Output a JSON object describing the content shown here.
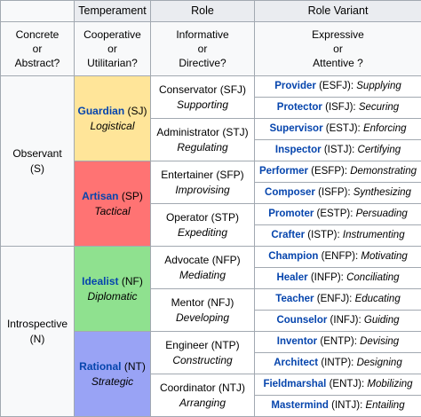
{
  "headers": {
    "temperament": "Temperament",
    "role": "Role",
    "role_variant": "Role Variant"
  },
  "questions": {
    "col1": [
      "Concrete",
      "or",
      "Abstract?"
    ],
    "col2": [
      "Cooperative",
      "or",
      "Utilitarian?"
    ],
    "col3": [
      "Informative",
      "or",
      "Directive?"
    ],
    "col4": [
      "Expressive",
      "or",
      "Attentive ?"
    ]
  },
  "groups": [
    {
      "label": "Observant",
      "code": "(S)"
    },
    {
      "label": "Introspective",
      "code": "(N)"
    }
  ],
  "temperaments": [
    {
      "name": "Guardian",
      "code": "(SJ)",
      "desc": "Logistical",
      "color": "#ffe599"
    },
    {
      "name": "Artisan",
      "code": "(SP)",
      "desc": "Tactical",
      "color": "#ff7373"
    },
    {
      "name": "Idealist",
      "code": "(NF)",
      "desc": "Diplomatic",
      "color": "#8fe18f"
    },
    {
      "name": "Rational",
      "code": "(NT)",
      "desc": "Strategic",
      "color": "#99a3f5"
    }
  ],
  "roles": [
    {
      "name": "Conservator",
      "code": "(SFJ)",
      "desc": "Supporting"
    },
    {
      "name": "Administrator",
      "code": "(STJ)",
      "desc": "Regulating"
    },
    {
      "name": "Entertainer",
      "code": "(SFP)",
      "desc": "Improvising"
    },
    {
      "name": "Operator",
      "code": "(STP)",
      "desc": "Expediting"
    },
    {
      "name": "Advocate",
      "code": "(NFP)",
      "desc": "Mediating"
    },
    {
      "name": "Mentor",
      "code": "(NFJ)",
      "desc": "Developing"
    },
    {
      "name": "Engineer",
      "code": "(NTP)",
      "desc": "Constructing"
    },
    {
      "name": "Coordinator",
      "code": "(NTJ)",
      "desc": "Arranging"
    }
  ],
  "variants": [
    {
      "name": "Provider",
      "code": "(ESFJ):",
      "desc": "Supplying"
    },
    {
      "name": "Protector",
      "code": "(ISFJ):",
      "desc": "Securing"
    },
    {
      "name": "Supervisor",
      "code": "(ESTJ):",
      "desc": "Enforcing"
    },
    {
      "name": "Inspector",
      "code": "(ISTJ):",
      "desc": "Certifying"
    },
    {
      "name": "Performer",
      "code": "(ESFP):",
      "desc": "Demonstrating"
    },
    {
      "name": "Composer",
      "code": "(ISFP):",
      "desc": "Synthesizing"
    },
    {
      "name": "Promoter",
      "code": "(ESTP):",
      "desc": "Persuading"
    },
    {
      "name": "Crafter",
      "code": "(ISTP):",
      "desc": "Instrumenting"
    },
    {
      "name": "Champion",
      "code": "(ENFP):",
      "desc": "Motivating"
    },
    {
      "name": "Healer",
      "code": "(INFP):",
      "desc": "Conciliating"
    },
    {
      "name": "Teacher",
      "code": "(ENFJ):",
      "desc": "Educating"
    },
    {
      "name": "Counselor",
      "code": "(INFJ):",
      "desc": "Guiding"
    },
    {
      "name": "Inventor",
      "code": "(ENTP):",
      "desc": "Devising"
    },
    {
      "name": "Architect",
      "code": "(INTP):",
      "desc": "Designing"
    },
    {
      "name": "Fieldmarshal",
      "code": "(ENTJ):",
      "desc": "Mobilizing"
    },
    {
      "name": "Mastermind",
      "code": "(INTJ):",
      "desc": "Entailing"
    }
  ]
}
